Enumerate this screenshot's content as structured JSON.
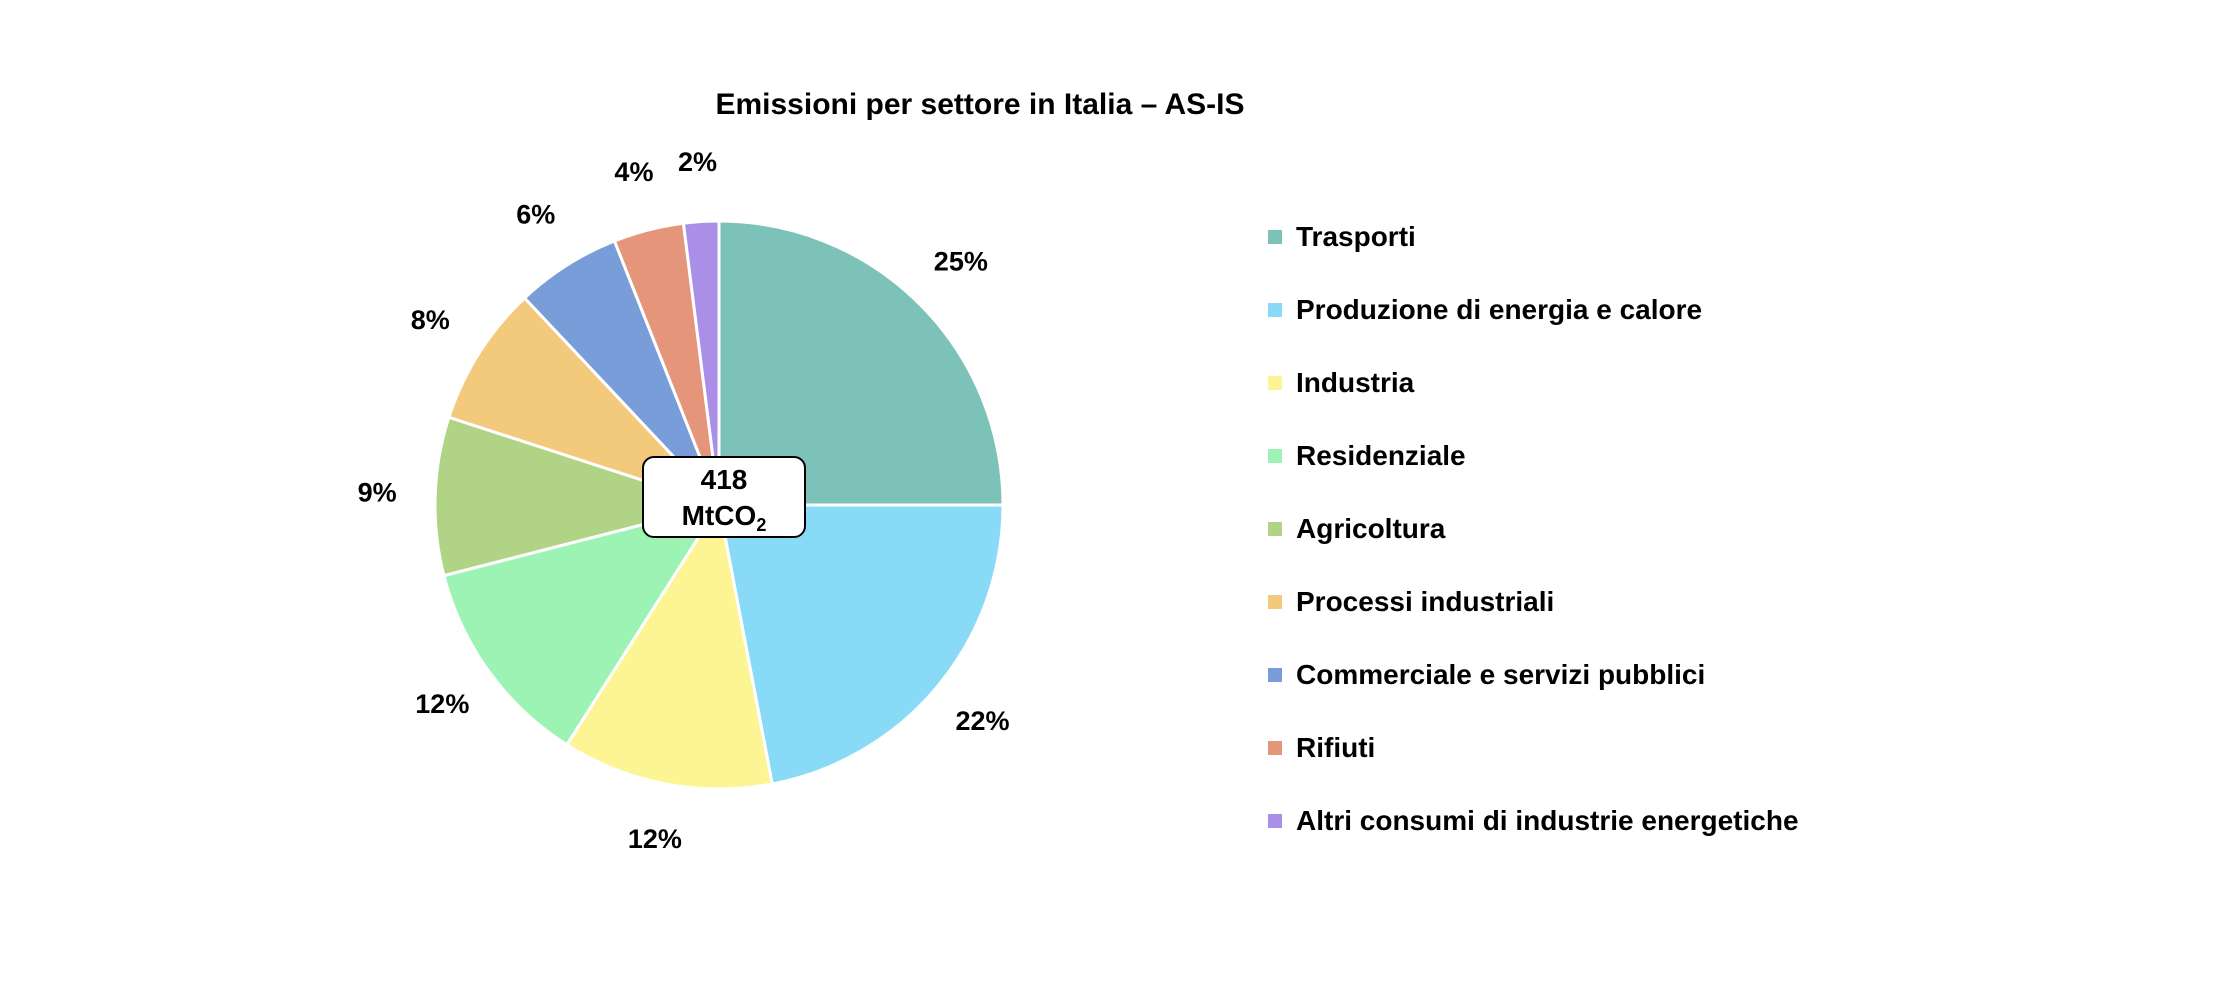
{
  "chart_data": {
    "type": "pie",
    "title": "Emissioni per settore in Italia – AS-IS",
    "center_label": {
      "value": "418",
      "unit_main": "MtCO",
      "unit_sub": "2"
    },
    "slices": [
      {
        "name": "Trasporti",
        "value": 25,
        "label": "25%",
        "color": "#7dc2b9"
      },
      {
        "name": "Produzione di energia e calore",
        "value": 22,
        "label": "22%",
        "color": "#89daf7"
      },
      {
        "name": "Industria",
        "value": 12,
        "label": "12%",
        "color": "#fdf594"
      },
      {
        "name": "Residenziale",
        "value": 12,
        "label": "12%",
        "color": "#9df3b3"
      },
      {
        "name": "Agricoltura",
        "value": 9,
        "label": "9%",
        "color": "#b1d386"
      },
      {
        "name": "Processi industriali",
        "value": 8,
        "label": "8%",
        "color": "#f3c97c"
      },
      {
        "name": "Commerciale e servizi pubblici",
        "value": 6,
        "label": "6%",
        "color": "#799dd9"
      },
      {
        "name": "Rifiuti",
        "value": 4,
        "label": "4%",
        "color": "#e5967a"
      },
      {
        "name": "Altri consumi di industrie energetiche",
        "value": 2,
        "label": "2%",
        "color": "#ab8ee8"
      }
    ],
    "start_direction": "top",
    "direction": "clockwise",
    "legend_position": "right"
  }
}
